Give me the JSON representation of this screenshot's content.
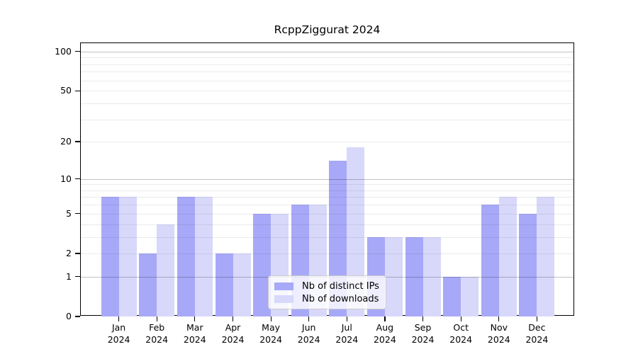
{
  "chart_data": {
    "type": "bar",
    "title": "RcppZiggurat 2024",
    "categories": [
      "Jan",
      "Feb",
      "Mar",
      "Apr",
      "May",
      "Jun",
      "Jul",
      "Aug",
      "Sep",
      "Oct",
      "Nov",
      "Dec"
    ],
    "x_sublabel": "2024",
    "series": [
      {
        "name": "Nb of distinct IPs",
        "color": "#a8a8f8",
        "values": [
          7,
          2,
          7,
          2,
          5,
          6,
          14,
          3,
          3,
          1,
          6,
          5
        ]
      },
      {
        "name": "Nb of downloads",
        "color": "#d8d8fa",
        "values": [
          7,
          4,
          7,
          2,
          5,
          6,
          18,
          3,
          3,
          1,
          7,
          7
        ]
      }
    ],
    "yscale": "log1p",
    "ylim": [
      0,
      115.6
    ],
    "yticks": [
      0,
      1,
      2,
      5,
      10,
      20,
      50,
      100
    ],
    "grid_major": [
      1,
      10,
      100
    ],
    "grid_minor": [
      2,
      3,
      4,
      5,
      6,
      7,
      8,
      9,
      20,
      30,
      40,
      50,
      60,
      70,
      80,
      90
    ],
    "grid": "on",
    "legend_position": "inside-bottom-center-left",
    "background": "#ffffff"
  }
}
